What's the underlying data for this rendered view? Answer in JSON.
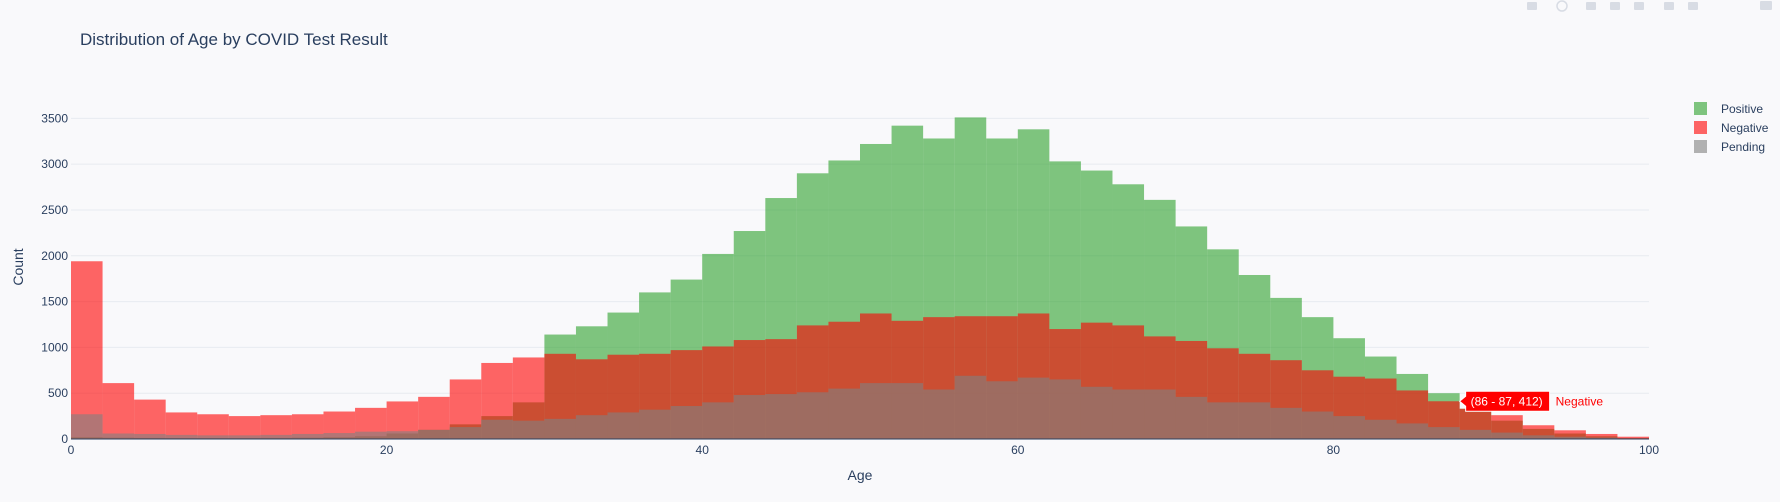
{
  "chart_data": {
    "type": "bar",
    "title": "Distribution of Age by COVID Test Result",
    "xlabel": "Age",
    "ylabel": "Count",
    "xlim": [
      0,
      100
    ],
    "ylim": [
      0,
      3700
    ],
    "x_ticks": [
      0,
      20,
      40,
      60,
      80,
      100
    ],
    "y_ticks": [
      0,
      500,
      1000,
      1500,
      2000,
      2500,
      3000,
      3500
    ],
    "bin_width": 2,
    "bin_starts": [
      0,
      2,
      4,
      6,
      8,
      10,
      12,
      14,
      16,
      18,
      20,
      22,
      24,
      26,
      28,
      30,
      32,
      34,
      36,
      38,
      40,
      42,
      44,
      46,
      48,
      50,
      52,
      54,
      56,
      58,
      60,
      62,
      64,
      66,
      68,
      70,
      72,
      74,
      76,
      78,
      80,
      82,
      84,
      86,
      88,
      90,
      92,
      94,
      96,
      98
    ],
    "barmode": "overlay",
    "grid": true,
    "legend_position": "top-right",
    "series": [
      {
        "name": "Positive",
        "color": "#2ca02c",
        "values": [
          20,
          15,
          12,
          10,
          10,
          10,
          12,
          15,
          20,
          30,
          60,
          100,
          160,
          250,
          400,
          1140,
          1230,
          1380,
          1600,
          1740,
          2020,
          2270,
          2630,
          2900,
          3040,
          3220,
          3420,
          3280,
          3510,
          3280,
          3380,
          3030,
          2930,
          2780,
          2610,
          2320,
          2070,
          1790,
          1540,
          1330,
          1100,
          900,
          710,
          500,
          330,
          200,
          110,
          60,
          30,
          10
        ]
      },
      {
        "name": "Negative",
        "color": "#ff0000",
        "values": [
          1940,
          610,
          430,
          290,
          270,
          250,
          260,
          270,
          300,
          340,
          410,
          460,
          650,
          830,
          890,
          930,
          870,
          920,
          930,
          970,
          1010,
          1080,
          1090,
          1240,
          1280,
          1370,
          1290,
          1330,
          1340,
          1340,
          1370,
          1200,
          1270,
          1240,
          1120,
          1070,
          990,
          930,
          860,
          750,
          680,
          660,
          530,
          412,
          330,
          260,
          150,
          95,
          55,
          25
        ]
      },
      {
        "name": "Pending",
        "color": "#808080",
        "values": [
          270,
          60,
          55,
          45,
          40,
          40,
          45,
          55,
          65,
          80,
          85,
          100,
          130,
          210,
          200,
          220,
          260,
          290,
          320,
          360,
          400,
          480,
          490,
          510,
          550,
          610,
          610,
          540,
          690,
          630,
          670,
          650,
          570,
          540,
          540,
          460,
          400,
          400,
          340,
          300,
          250,
          210,
          170,
          130,
          100,
          70,
          40,
          25,
          15,
          5
        ]
      }
    ],
    "hover_label": {
      "text": "(86 - 87, 412)",
      "series_name": "Negative"
    }
  }
}
